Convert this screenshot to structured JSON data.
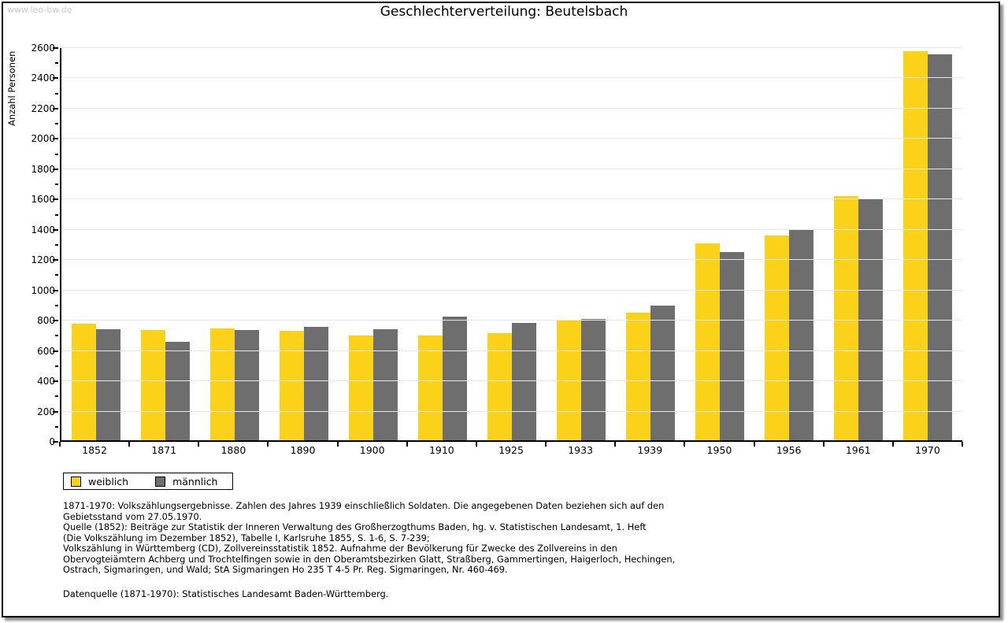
{
  "watermark": "www.leo-bw.de",
  "title": "Geschlechterverteilung: Beutelsbach",
  "chart_data": {
    "type": "bar",
    "title": "Geschlechterverteilung: Beutelsbach",
    "xlabel": "",
    "ylabel": "Anzahl Personen",
    "categories": [
      "1852",
      "1871",
      "1880",
      "1890",
      "1900",
      "1910",
      "1925",
      "1933",
      "1939",
      "1950",
      "1956",
      "1961",
      "1970"
    ],
    "series": [
      {
        "name": "weiblich",
        "color": "#FCD119",
        "values": [
          770,
          727,
          737,
          721,
          692,
          692,
          709,
          797,
          844,
          1301,
          1354,
          1614,
          2570
        ]
      },
      {
        "name": "männlich",
        "color": "#6E6E6E",
        "values": [
          733,
          650,
          726,
          749,
          733,
          816,
          775,
          799,
          888,
          1243,
          1393,
          1591,
          2546
        ]
      }
    ],
    "ylim": [
      0,
      2600
    ],
    "ytick_step": 200,
    "minor_tick_step": 100,
    "grid": "horizontal-major",
    "legend_position": "bottom-left"
  },
  "legend": {
    "items": [
      {
        "label": "weiblich",
        "color": "#FCD119"
      },
      {
        "label": "männlich",
        "color": "#6E6E6E"
      }
    ]
  },
  "footer": {
    "notes": [
      "1871-1970: Volkszählungsergebnisse. Zahlen des Jahres 1939 einschließlich Soldaten. Die angegebenen Daten beziehen sich auf den",
      "Gebietsstand vom 27.05.1970.",
      "Quelle (1852): Beiträge zur Statistik der Inneren Verwaltung des Großherzogthums Baden, hg. v. Statistischen Landesamt, 1. Heft",
      "(Die Volkszählung im Dezember 1852), Tabelle I, Karlsruhe 1855, S. 1-6, S. 7-239;",
      "Volkszählung in Württemberg (CD), Zollvereinsstatistik 1852. Aufnahme der Bevölkerung für Zwecke des Zollvereins in den",
      "Obervogteiämtern Achberg und Trochtelfingen sowie in den Oberamtsbezirken Glatt, Straßberg, Gammertingen, Haigerloch, Hechingen,",
      "Ostrach, Sigmaringen, und Wald; StA Sigmaringen Ho 235 T 4-5 Pr. Reg. Sigmaringen, Nr. 460-469."
    ],
    "datasource": "Datenquelle (1871-1970): Statistisches Landesamt Baden-Württemberg."
  }
}
